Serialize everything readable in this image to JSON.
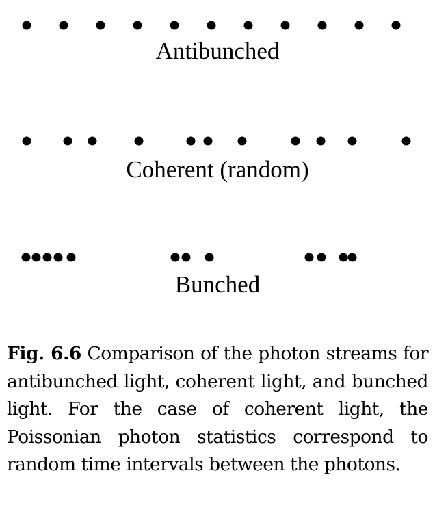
{
  "rows": [
    {
      "id": "antibunched",
      "label": "Antibunched",
      "photon_times": [
        39,
        93,
        147,
        201,
        255,
        309,
        363,
        417,
        471,
        525,
        579
      ]
    },
    {
      "id": "coherent",
      "label": "Coherent (random)",
      "photon_times": [
        39,
        99,
        135,
        203,
        279,
        304,
        354,
        432,
        469,
        515,
        594
      ]
    },
    {
      "id": "bunched",
      "label": "Bunched",
      "photon_times": [
        38,
        53,
        69,
        85,
        104,
        256,
        272,
        306,
        452,
        470,
        502,
        515
      ]
    }
  ],
  "caption": {
    "figure_label": "Fig. 6.6",
    "text": "Comparison of the photon streams for antibunched light, coher­ent light, and bunched light. For the case of coherent light, the Poissonian photon statistics correspond to random time intervals between the photons."
  },
  "colors": {
    "dot": "#000000",
    "background": "#ffffff"
  }
}
